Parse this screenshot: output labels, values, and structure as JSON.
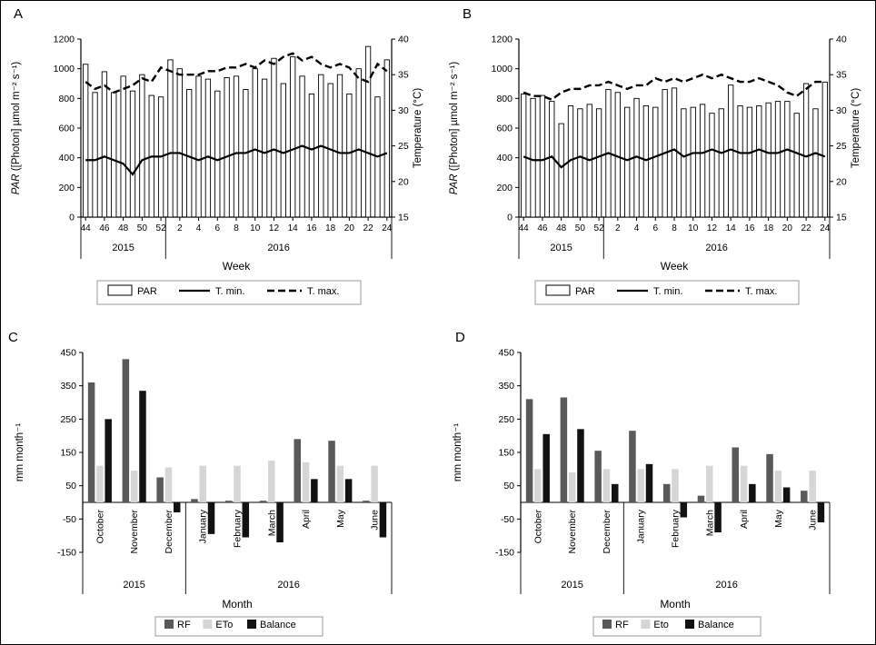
{
  "figure": {
    "background": "#ffffff",
    "panel_letters": [
      "A",
      "B",
      "C",
      "D"
    ]
  },
  "chart_data": [
    {
      "panel_letter": "A",
      "type": "combo",
      "xlabel": "Week",
      "ylabel_left_italic": "PAR",
      "ylabel_left_rest": " ([Photon] µmol m⁻² s⁻¹)",
      "ylabel_right": "Temperature (°C)",
      "ylim_left": [
        0,
        1200
      ],
      "yticks_left": [
        0,
        200,
        400,
        600,
        800,
        1000,
        1200
      ],
      "ylim_right": [
        15,
        40
      ],
      "yticks_right": [
        15,
        20,
        25,
        30,
        35,
        40
      ],
      "x_categories": [
        44,
        45,
        46,
        47,
        48,
        49,
        50,
        51,
        52,
        1,
        2,
        3,
        4,
        5,
        6,
        7,
        8,
        9,
        10,
        11,
        12,
        13,
        14,
        15,
        16,
        17,
        18,
        19,
        20,
        21,
        22,
        23,
        24
      ],
      "xtick_shown": [
        44,
        46,
        48,
        50,
        52,
        2,
        4,
        6,
        8,
        10,
        12,
        14,
        16,
        18,
        20,
        22,
        24
      ],
      "year_groups": [
        {
          "label": "2015",
          "end_index": 8
        },
        {
          "label": "2016",
          "end_index": 32
        }
      ],
      "series": [
        {
          "name": "PAR",
          "kind": "bar",
          "fill": "#ffffff",
          "stroke": "#000000",
          "values": [
            1030,
            840,
            980,
            840,
            950,
            850,
            960,
            820,
            810,
            1060,
            1000,
            860,
            950,
            930,
            850,
            940,
            950,
            860,
            1000,
            930,
            1070,
            900,
            1080,
            950,
            830,
            960,
            900,
            960,
            830,
            1000,
            1150,
            810,
            1060
          ]
        },
        {
          "name": "T. min.",
          "kind": "line",
          "color": "#000000",
          "dash": "",
          "width": 2.2,
          "values": [
            23,
            23,
            23.5,
            23,
            22.5,
            21,
            23,
            23.5,
            23.5,
            24,
            24,
            23.5,
            23,
            23.5,
            23,
            23.5,
            24,
            24,
            24.5,
            24,
            24.5,
            24,
            24.5,
            25,
            24.5,
            25,
            24.5,
            24,
            24,
            24.5,
            24,
            23.5,
            24
          ]
        },
        {
          "name": "T. max.",
          "kind": "line",
          "color": "#000000",
          "dash": "8,4",
          "width": 2.4,
          "values": [
            34,
            33,
            33.5,
            32.5,
            33,
            33.5,
            34.5,
            34,
            36,
            35.5,
            35,
            35,
            35,
            35.5,
            35.5,
            36,
            36,
            36.5,
            36,
            37,
            36.5,
            37.5,
            38,
            37,
            37.5,
            36.5,
            36,
            36.5,
            36,
            34.5,
            34,
            36.5,
            35.5
          ]
        }
      ],
      "legend": [
        {
          "label": "PAR",
          "swatch": "open-bar"
        },
        {
          "label": "T. min.",
          "swatch": "solid-line"
        },
        {
          "label": "T. max.",
          "swatch": "dashed-line"
        }
      ]
    },
    {
      "panel_letter": "B",
      "type": "combo",
      "xlabel": "Week",
      "ylabel_left_italic": "PAR",
      "ylabel_left_rest": " ([Photon] µmol m⁻² s⁻¹)",
      "ylabel_right": "Temperature (°C)",
      "ylim_left": [
        0,
        1200
      ],
      "yticks_left": [
        0,
        200,
        400,
        600,
        800,
        1000,
        1200
      ],
      "ylim_right": [
        15,
        40
      ],
      "yticks_right": [
        15,
        20,
        25,
        30,
        35,
        40
      ],
      "x_categories": [
        44,
        45,
        46,
        47,
        48,
        49,
        50,
        51,
        52,
        1,
        2,
        3,
        4,
        5,
        6,
        7,
        8,
        9,
        10,
        11,
        12,
        13,
        14,
        15,
        16,
        17,
        18,
        19,
        20,
        21,
        22,
        23,
        24
      ],
      "xtick_shown": [
        44,
        46,
        48,
        50,
        52,
        2,
        4,
        6,
        8,
        10,
        12,
        14,
        16,
        18,
        20,
        22,
        24
      ],
      "year_groups": [
        {
          "label": "2015",
          "end_index": 8
        },
        {
          "label": "2016",
          "end_index": 32
        }
      ],
      "series": [
        {
          "name": "PAR",
          "kind": "bar",
          "fill": "#ffffff",
          "stroke": "#000000",
          "values": [
            830,
            800,
            820,
            780,
            630,
            750,
            730,
            760,
            730,
            860,
            840,
            740,
            800,
            750,
            740,
            860,
            870,
            730,
            740,
            760,
            700,
            730,
            890,
            750,
            740,
            750,
            770,
            780,
            780,
            700,
            900,
            730,
            910
          ]
        },
        {
          "name": "T. min.",
          "kind": "line",
          "color": "#000000",
          "dash": "",
          "width": 2.2,
          "values": [
            23.5,
            23,
            23,
            23.5,
            22,
            23,
            23.5,
            23,
            23.5,
            24,
            23.5,
            23,
            23.5,
            23,
            23.5,
            24,
            24.5,
            23.5,
            24,
            24,
            24.5,
            24,
            24.5,
            24,
            24,
            24.5,
            24,
            24,
            24.5,
            24,
            23.5,
            24,
            23.5
          ]
        },
        {
          "name": "T. max.",
          "kind": "line",
          "color": "#000000",
          "dash": "8,4",
          "width": 2.4,
          "values": [
            32.5,
            32,
            32,
            31.5,
            32.5,
            33,
            33,
            33.5,
            33.5,
            34,
            33.5,
            33,
            33.5,
            33.5,
            34.5,
            34,
            34.5,
            34,
            34.5,
            35,
            34.5,
            35,
            34.5,
            34,
            34,
            34.5,
            34,
            33.5,
            32.5,
            32,
            33,
            34,
            34
          ]
        }
      ],
      "legend": [
        {
          "label": "PAR",
          "swatch": "open-bar"
        },
        {
          "label": "T. min.",
          "swatch": "solid-line"
        },
        {
          "label": "T. max.",
          "swatch": "dashed-line"
        }
      ]
    },
    {
      "panel_letter": "C",
      "type": "grouped-bar",
      "xlabel": "Month",
      "ylabel": "mm month⁻¹",
      "ylim": [
        -150,
        450
      ],
      "yticks": [
        -150,
        -50,
        50,
        150,
        250,
        350,
        450
      ],
      "categories": [
        "October",
        "November",
        "December",
        "January",
        "February",
        "March",
        "April",
        "May",
        "June"
      ],
      "year_groups": [
        {
          "label": "2015",
          "end_index": 2
        },
        {
          "label": "2016",
          "end_index": 8
        }
      ],
      "series": [
        {
          "name": "RF",
          "color": "#595959",
          "values": [
            360,
            430,
            75,
            10,
            5,
            5,
            190,
            185,
            5
          ]
        },
        {
          "name": "ETo",
          "color": "#d6d6d6",
          "values": [
            110,
            95,
            105,
            110,
            110,
            125,
            120,
            110,
            110
          ]
        },
        {
          "name": "Balance",
          "color": "#121212",
          "values": [
            250,
            335,
            -30,
            -95,
            -105,
            -120,
            70,
            70,
            -105
          ]
        }
      ],
      "legend": [
        {
          "label": "RF",
          "color": "#595959"
        },
        {
          "label": "ETo",
          "color": "#d6d6d6"
        },
        {
          "label": "Balance",
          "color": "#121212"
        }
      ]
    },
    {
      "panel_letter": "D",
      "type": "grouped-bar",
      "xlabel": "Month",
      "ylabel": "mm month⁻¹",
      "ylim": [
        -150,
        450
      ],
      "yticks": [
        -150,
        -50,
        50,
        150,
        250,
        350,
        450
      ],
      "categories": [
        "October",
        "November",
        "December",
        "January",
        "February",
        "March",
        "April",
        "May",
        "June"
      ],
      "year_groups": [
        {
          "label": "2015",
          "end_index": 2
        },
        {
          "label": "2016",
          "end_index": 8
        }
      ],
      "series": [
        {
          "name": "RF",
          "color": "#595959",
          "values": [
            310,
            315,
            155,
            215,
            55,
            20,
            165,
            145,
            35
          ]
        },
        {
          "name": "Eto",
          "color": "#d6d6d6",
          "values": [
            100,
            90,
            100,
            100,
            100,
            110,
            110,
            95,
            95
          ]
        },
        {
          "name": "Balance",
          "color": "#121212",
          "values": [
            205,
            220,
            55,
            115,
            -45,
            -90,
            55,
            45,
            -60
          ]
        }
      ],
      "legend": [
        {
          "label": "RF",
          "color": "#595959"
        },
        {
          "label": "Eto",
          "color": "#d6d6d6"
        },
        {
          "label": "Balance",
          "color": "#121212"
        }
      ]
    }
  ]
}
